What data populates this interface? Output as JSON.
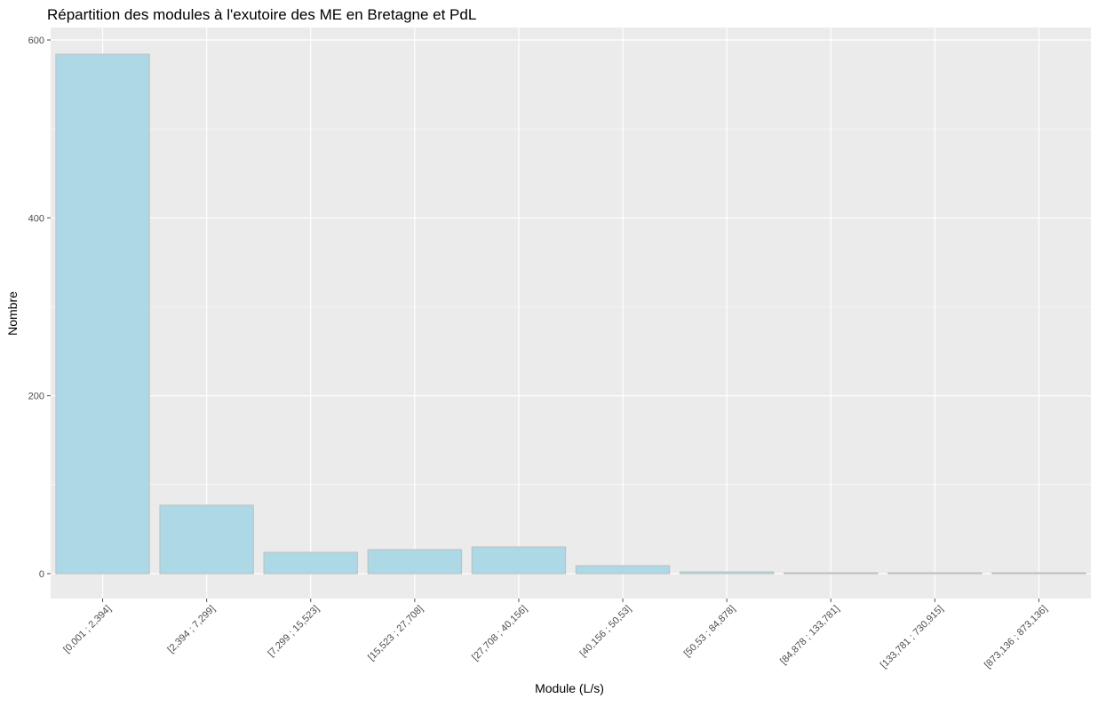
{
  "chart_data": {
    "type": "bar",
    "title": "Répartition des modules à l'exutoire des ME en Bretagne et PdL",
    "xlabel": "Module (L/s)",
    "ylabel": "Nombre",
    "categories": [
      "[0,001 ; 2,394]",
      "[2,394 ; 7,299]",
      "[7,299 ; 15,523]",
      "[15,523 ; 27,708]",
      "[27,708 ; 40,156]",
      "[40,156 ; 50,53]",
      "[50,53 ; 84,878]",
      "[84,878 ; 133,781]",
      "[133,781 ; 730,915]",
      "[873,136 ; 873,136]"
    ],
    "values": [
      584,
      77,
      24,
      27,
      30,
      9,
      2,
      1,
      1,
      1
    ],
    "ylim": [
      -28,
      614
    ],
    "yticks": [
      0,
      200,
      400,
      600
    ],
    "ytick_labels": [
      "0",
      "200",
      "400",
      "600"
    ],
    "grid": true,
    "legend": "none",
    "colors": {
      "panel_background": "#ebebeb",
      "grid_major": "#ffffff",
      "bar_fill": "#add8e6",
      "bar_stroke": "#bfbfbf",
      "axis_text": "#4d4d4d",
      "title_text": "#000000"
    }
  }
}
